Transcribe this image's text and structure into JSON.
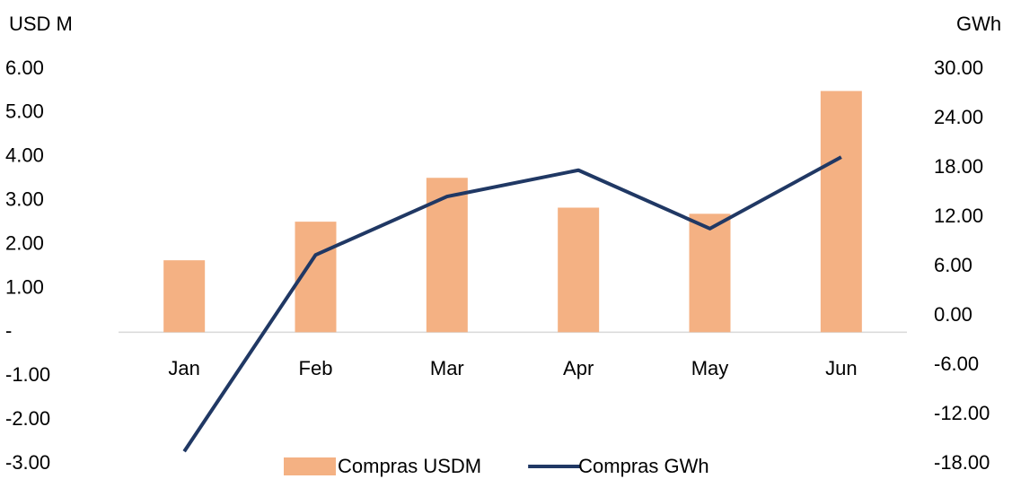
{
  "chart_data": {
    "type": "bar_line",
    "y_label": "USD M",
    "y2_label": "GWh",
    "categories": [
      "Jan",
      "Feb",
      "Mar",
      "Apr",
      "May",
      "Jun"
    ],
    "series": [
      {
        "name": "Compras USDM",
        "type": "bar",
        "color": "#f4b183",
        "values": [
          1.64,
          2.52,
          3.52,
          2.84,
          2.7,
          5.5
        ]
      },
      {
        "name": "Compras GWh",
        "type": "line",
        "axis": "y2",
        "color": "#203864",
        "values": [
          -16.5,
          7.4,
          14.5,
          17.7,
          10.6,
          19.3
        ]
      }
    ],
    "ylim": [
      -3,
      6
    ],
    "yticks": [
      {
        "value": 6,
        "label": "6.00"
      },
      {
        "value": 5,
        "label": "5.00"
      },
      {
        "value": 4,
        "label": "4.00"
      },
      {
        "value": 3,
        "label": "3.00"
      },
      {
        "value": 2,
        "label": "2.00"
      },
      {
        "value": 1,
        "label": "1.00"
      },
      {
        "value": 0,
        "label": "-"
      },
      {
        "value": -1,
        "label": "-1.00"
      },
      {
        "value": -2,
        "label": "-2.00"
      },
      {
        "value": -3,
        "label": "-3.00"
      }
    ],
    "y2lim": [
      -18,
      30
    ],
    "y2ticks": [
      {
        "value": 30,
        "label": "30.00"
      },
      {
        "value": 24,
        "label": "24.00"
      },
      {
        "value": 18,
        "label": "18.00"
      },
      {
        "value": 12,
        "label": "12.00"
      },
      {
        "value": 6,
        "label": "6.00"
      },
      {
        "value": 0,
        "label": "0.00"
      },
      {
        "value": -6,
        "label": "-6.00"
      },
      {
        "value": -12,
        "label": "-12.00"
      },
      {
        "value": -18,
        "label": "-18.00"
      }
    ],
    "legend": "bottom"
  }
}
